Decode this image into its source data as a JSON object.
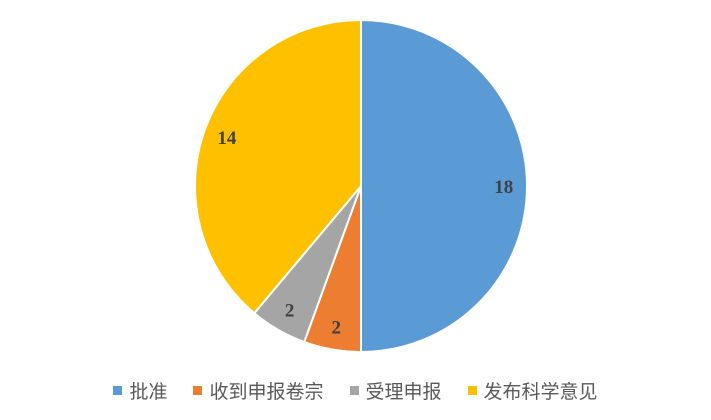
{
  "chart_data": {
    "type": "pie",
    "categories": [
      "批准",
      "收到申报卷宗",
      "受理申报",
      "发布科学意见"
    ],
    "values": [
      18,
      2,
      2,
      14
    ],
    "colors": [
      "#5B9BD5",
      "#ED7D31",
      "#A5A5A5",
      "#FFC000"
    ],
    "data_labels": true,
    "start_angle": "top, clockwise",
    "legend_position": "bottom"
  }
}
